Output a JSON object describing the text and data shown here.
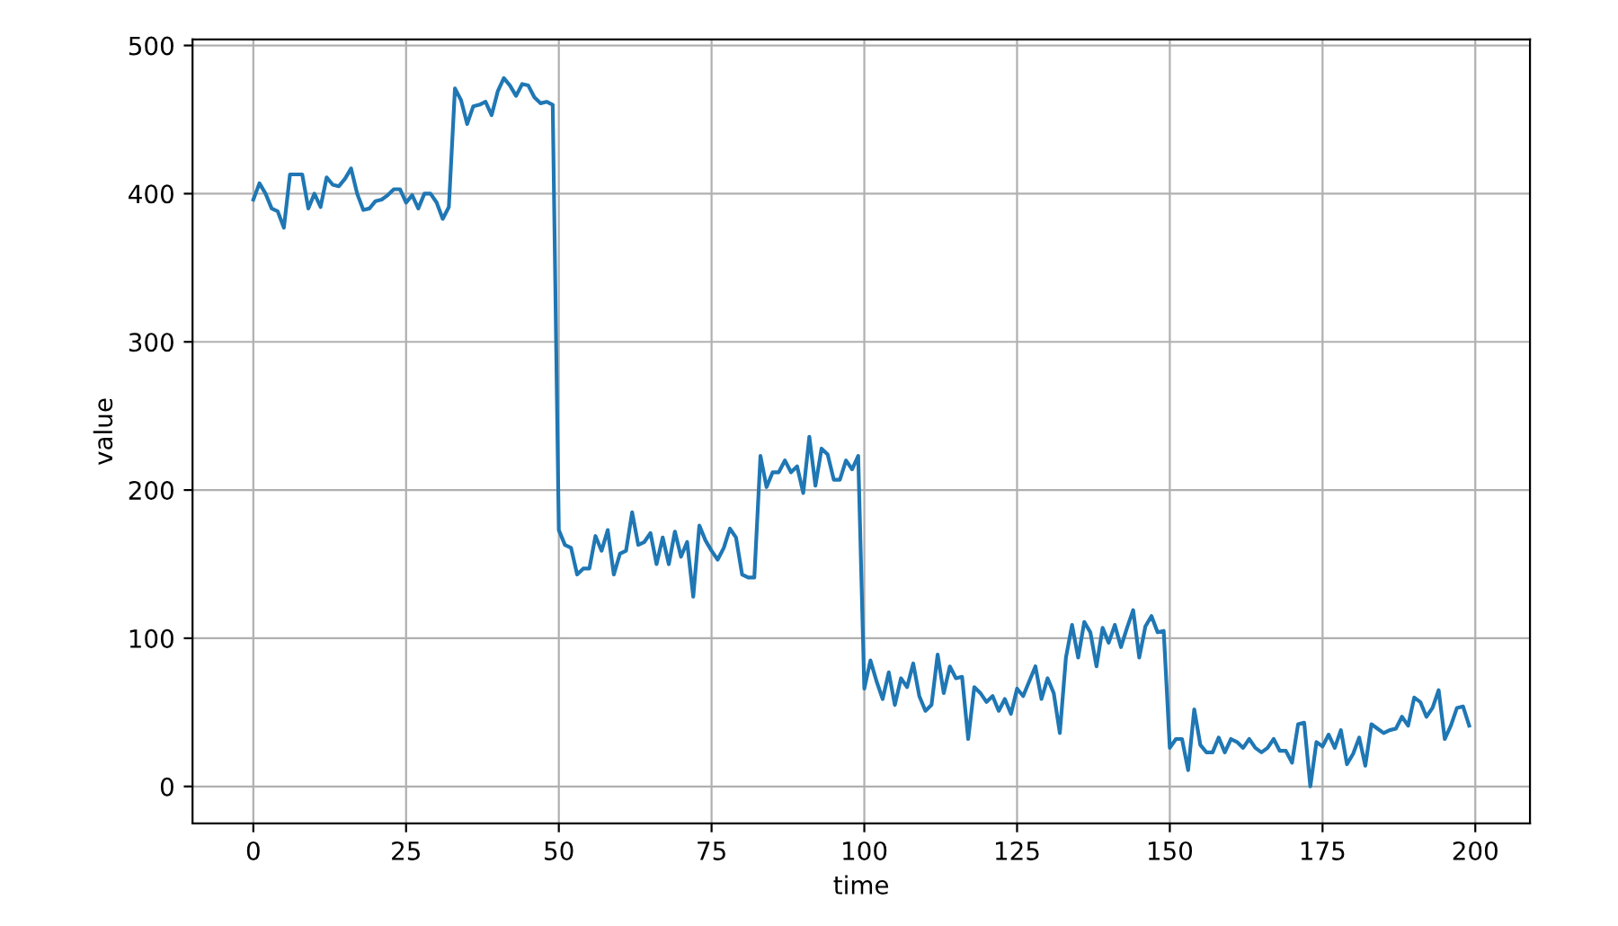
{
  "chart_data": {
    "type": "line",
    "xlabel": "time",
    "ylabel": "value",
    "x": [
      0,
      1,
      2,
      3,
      4,
      5,
      6,
      7,
      8,
      9,
      10,
      11,
      12,
      13,
      14,
      15,
      16,
      17,
      18,
      19,
      20,
      21,
      22,
      23,
      24,
      25,
      26,
      27,
      28,
      29,
      30,
      31,
      32,
      33,
      34,
      35,
      36,
      37,
      38,
      39,
      40,
      41,
      42,
      43,
      44,
      45,
      46,
      47,
      48,
      49,
      50,
      51,
      52,
      53,
      54,
      55,
      56,
      57,
      58,
      59,
      60,
      61,
      62,
      63,
      64,
      65,
      66,
      67,
      68,
      69,
      70,
      71,
      72,
      73,
      74,
      75,
      76,
      77,
      78,
      79,
      80,
      81,
      82,
      83,
      84,
      85,
      86,
      87,
      88,
      89,
      90,
      91,
      92,
      93,
      94,
      95,
      96,
      97,
      98,
      99,
      100,
      101,
      102,
      103,
      104,
      105,
      106,
      107,
      108,
      109,
      110,
      111,
      112,
      113,
      114,
      115,
      116,
      117,
      118,
      119,
      120,
      121,
      122,
      123,
      124,
      125,
      126,
      127,
      128,
      129,
      130,
      131,
      132,
      133,
      134,
      135,
      136,
      137,
      138,
      139,
      140,
      141,
      142,
      143,
      144,
      145,
      146,
      147,
      148,
      149,
      150,
      151,
      152,
      153,
      154,
      155,
      156,
      157,
      158,
      159,
      160,
      161,
      162,
      163,
      164,
      165,
      166,
      167,
      168,
      169,
      170,
      171,
      172,
      173,
      174,
      175,
      176,
      177,
      178,
      179,
      180,
      181,
      182,
      183,
      184,
      185,
      186,
      187,
      188,
      189,
      190,
      191,
      192,
      193,
      194,
      195,
      196,
      197,
      198,
      199
    ],
    "series": [
      {
        "color": "#1f77b4",
        "values": [
          396,
          407,
          400,
          390,
          388,
          377,
          413,
          413,
          413,
          390,
          400,
          391,
          411,
          406,
          405,
          410,
          417,
          400,
          389,
          390,
          395,
          396,
          399,
          403,
          403,
          394,
          399,
          390,
          400,
          400,
          394,
          383,
          391,
          471,
          463,
          447,
          459,
          460,
          462,
          453,
          469,
          478,
          473,
          466,
          474,
          473,
          465,
          461,
          462,
          460,
          173,
          163,
          161,
          143,
          147,
          147,
          169,
          159,
          173,
          143,
          157,
          159,
          185,
          163,
          165,
          171,
          150,
          168,
          150,
          172,
          155,
          165,
          128,
          176,
          166,
          159,
          153,
          161,
          174,
          168,
          143,
          141,
          141,
          223,
          202,
          212,
          212,
          220,
          212,
          216,
          198,
          236,
          203,
          228,
          224,
          207,
          207,
          220,
          214,
          223,
          66,
          85,
          71,
          59,
          77,
          55,
          73,
          67,
          83,
          61,
          51,
          55,
          89,
          63,
          81,
          73,
          74,
          32,
          67,
          63,
          57,
          61,
          51,
          59,
          49,
          66,
          61,
          71,
          81,
          59,
          73,
          63,
          36,
          87,
          109,
          87,
          111,
          104,
          81,
          107,
          97,
          109,
          94,
          107,
          119,
          87,
          108,
          115,
          104,
          105,
          26,
          32,
          32,
          11,
          52,
          28,
          23,
          23,
          33,
          23,
          32,
          30,
          26,
          32,
          26,
          23,
          26,
          32,
          24,
          24,
          16,
          42,
          43,
          0,
          30,
          27,
          35,
          26,
          38,
          15,
          22,
          33,
          14,
          42,
          39,
          36,
          38,
          39,
          47,
          41,
          60,
          57,
          47,
          53,
          65,
          32,
          41,
          53,
          54,
          41
        ]
      }
    ],
    "xlim": [
      -9.95,
      208.95
    ],
    "ylim": [
      -25,
      504
    ],
    "xticks": [
      0,
      25,
      50,
      75,
      100,
      125,
      150,
      175,
      200
    ],
    "yticks": [
      0,
      100,
      200,
      300,
      400,
      500
    ],
    "grid": true
  }
}
